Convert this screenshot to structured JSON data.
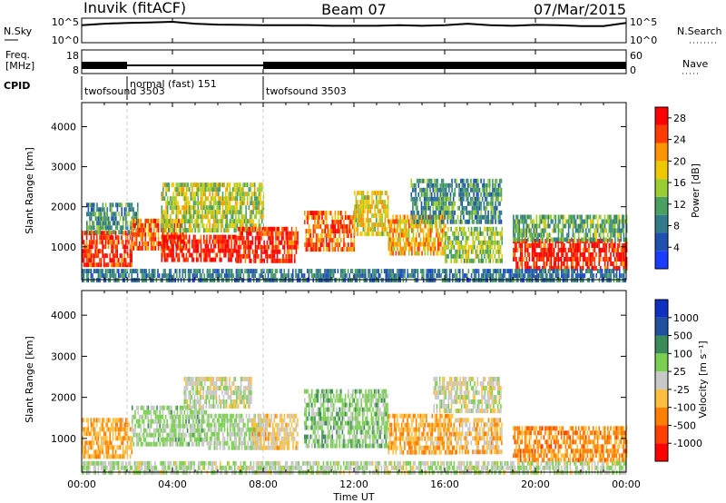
{
  "header": {
    "station": "Inuvik (fitACF)",
    "beam": "Beam 07",
    "date": "07/Mar/2015"
  },
  "noise_panel": {
    "left_label": "N.Sky",
    "right_label": "N.Search",
    "left_ticks": [
      "10^5",
      "10^0"
    ],
    "right_ticks": [
      "10^5",
      "10^0"
    ]
  },
  "freq_panel": {
    "left_label_line1": "Freq.",
    "left_label_line2": "[MHz]",
    "left_ticks": [
      "18",
      "8"
    ],
    "right_label": "Nave",
    "right_ticks": [
      "60",
      "0"
    ]
  },
  "cpid": {
    "label": "CPID",
    "segments": [
      {
        "start_h": 0.0,
        "end_h": 2.0,
        "text": "twofsound 3503"
      },
      {
        "start_h": 2.0,
        "end_h": 8.0,
        "text": "normal (fast) 151"
      },
      {
        "start_h": 8.0,
        "end_h": 24.0,
        "text": "twofsound 3503"
      }
    ]
  },
  "x_axis": {
    "label": "Time UT",
    "ticks": [
      "00:00",
      "04:00",
      "08:00",
      "12:00",
      "16:00",
      "20:00",
      "00:00"
    ],
    "range_h": [
      0,
      24
    ]
  },
  "power_panel": {
    "ylabel": "Slant Range [km]",
    "yticks": [
      "1000",
      "2000",
      "3000",
      "4000"
    ],
    "colorbar_label": "Power [dB]",
    "colorbar_ticks": [
      "4",
      "8",
      "12",
      "16",
      "20",
      "24",
      "28"
    ]
  },
  "velocity_panel": {
    "ylabel": "Slant Range [km]",
    "yticks": [
      "1000",
      "2000",
      "3000",
      "4000"
    ],
    "colorbar_label": "Velocity [m s⁻¹]",
    "colorbar_ticks": [
      "1000",
      "500",
      "100",
      "25",
      "-25",
      "-100",
      "-500",
      "-1000"
    ]
  },
  "chart_data": [
    {
      "type": "heatmap",
      "name": "power",
      "x_unit": "hours UT",
      "y_unit": "km",
      "xlim": [
        0,
        24
      ],
      "ylim": [
        180,
        4600
      ],
      "value_range_db": [
        0,
        30
      ],
      "colorscale": [
        "#1a3cff",
        "#2050b0",
        "#307a8a",
        "#4aa060",
        "#9acd32",
        "#f0c800",
        "#ff9400",
        "#ff3c00",
        "#ff0000"
      ],
      "regions": [
        {
          "t0": 0.0,
          "t1": 2.2,
          "r0": 600,
          "r1": 1400,
          "db": 26
        },
        {
          "t0": 0.2,
          "t1": 2.5,
          "r0": 1400,
          "r1": 2100,
          "db": 10
        },
        {
          "t0": 2.2,
          "t1": 4.6,
          "r0": 950,
          "r1": 1700,
          "db": 24
        },
        {
          "t0": 3.5,
          "t1": 6.8,
          "r0": 700,
          "r1": 1300,
          "db": 28
        },
        {
          "t0": 3.5,
          "t1": 8.0,
          "r0": 1400,
          "r1": 2600,
          "db": 16
        },
        {
          "t0": 6.8,
          "t1": 9.5,
          "r0": 650,
          "r1": 1500,
          "db": 27
        },
        {
          "t0": 9.8,
          "t1": 12.0,
          "r0": 900,
          "r1": 1900,
          "db": 24
        },
        {
          "t0": 12.0,
          "t1": 13.5,
          "r0": 1300,
          "r1": 2400,
          "db": 18
        },
        {
          "t0": 13.5,
          "t1": 16.0,
          "r0": 800,
          "r1": 1800,
          "db": 20
        },
        {
          "t0": 14.5,
          "t1": 18.5,
          "r0": 1600,
          "r1": 2700,
          "db": 10
        },
        {
          "t0": 16.0,
          "t1": 18.5,
          "r0": 700,
          "r1": 1500,
          "db": 15
        },
        {
          "t0": 19.0,
          "t1": 24.0,
          "r0": 500,
          "r1": 1200,
          "db": 27
        },
        {
          "t0": 19.0,
          "t1": 24.0,
          "r0": 1200,
          "r1": 1800,
          "db": 12
        },
        {
          "t0": 0.0,
          "t1": 24.0,
          "r0": 200,
          "r1": 450,
          "db": 8
        }
      ]
    },
    {
      "type": "heatmap",
      "name": "velocity",
      "x_unit": "hours UT",
      "y_unit": "km",
      "xlim": [
        0,
        24
      ],
      "ylim": [
        180,
        4600
      ],
      "value_range_ms": [
        -1000,
        1000
      ],
      "colorscale": [
        "#ff0000",
        "#ff4000",
        "#ff8000",
        "#ffc040",
        "#c8c8c8",
        "#7ad050",
        "#3a8a5a",
        "#2050a0",
        "#1030c0"
      ],
      "regions": [
        {
          "t0": 0.0,
          "t1": 2.2,
          "r0": 600,
          "r1": 1500,
          "v": -300
        },
        {
          "t0": 2.2,
          "t1": 5.5,
          "r0": 900,
          "r1": 1800,
          "v": 150
        },
        {
          "t0": 5.5,
          "t1": 8.0,
          "r0": 800,
          "r1": 1600,
          "v": 120
        },
        {
          "t0": 4.5,
          "t1": 7.5,
          "r0": 1800,
          "r1": 2500,
          "v": 0
        },
        {
          "t0": 7.5,
          "t1": 9.5,
          "r0": 800,
          "r1": 1600,
          "v": -150
        },
        {
          "t0": 9.8,
          "t1": 13.5,
          "r0": 800,
          "r1": 2200,
          "v": 200
        },
        {
          "t0": 13.5,
          "t1": 16.5,
          "r0": 700,
          "r1": 1600,
          "v": -300
        },
        {
          "t0": 15.5,
          "t1": 18.5,
          "r0": 1700,
          "r1": 2500,
          "v": 0
        },
        {
          "t0": 16.5,
          "t1": 18.5,
          "r0": 700,
          "r1": 1500,
          "v": -200
        },
        {
          "t0": 19.0,
          "t1": 24.0,
          "r0": 500,
          "r1": 1300,
          "v": -400
        },
        {
          "t0": 0.0,
          "t1": 24.0,
          "r0": 200,
          "r1": 450,
          "v": 60
        }
      ]
    },
    {
      "type": "line",
      "name": "noise",
      "x_unit": "hours UT",
      "log_scale": true,
      "ylim": [
        1,
        100000
      ],
      "x": [
        0,
        1,
        2,
        3,
        4,
        5,
        6,
        7,
        8,
        9,
        10,
        11,
        12,
        13,
        14,
        15,
        16,
        17,
        18,
        19,
        20,
        21,
        22,
        23,
        24
      ],
      "y": [
        8000,
        20000,
        30000,
        40000,
        60000,
        20000,
        12000,
        10000,
        8000,
        8000,
        8000,
        6000,
        6000,
        6000,
        8000,
        6000,
        8000,
        20000,
        8000,
        6000,
        10000,
        8000,
        5000,
        5000,
        30000
      ]
    },
    {
      "type": "area",
      "name": "frequency",
      "x_unit": "hours UT",
      "ylim": [
        8,
        18
      ],
      "x": [
        0,
        2,
        8,
        24
      ],
      "y": [
        11,
        11,
        11,
        11
      ]
    }
  ]
}
